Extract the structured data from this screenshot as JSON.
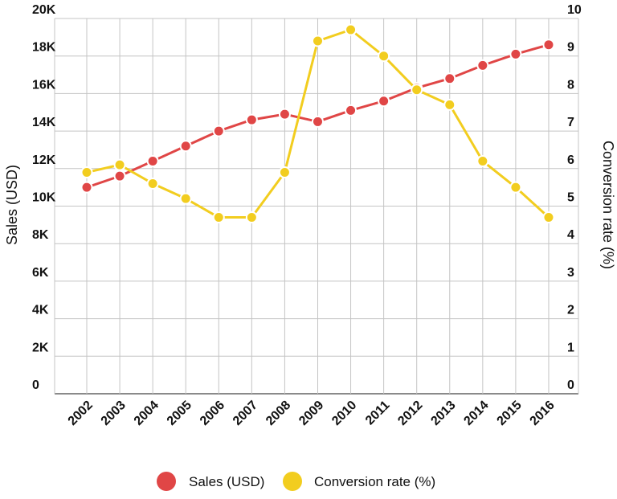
{
  "chart_data": {
    "type": "line",
    "title": "",
    "xlabel": "",
    "ylabel": "Sales (USD)",
    "y2label": "Conversion rate (%)",
    "categories": [
      "2002",
      "2003",
      "2004",
      "2005",
      "2006",
      "2007",
      "2008",
      "2009",
      "2010",
      "2011",
      "2012",
      "2013",
      "2014",
      "2015",
      "2016"
    ],
    "ylim": [
      0,
      20000
    ],
    "y_ticks": [
      0,
      2000,
      4000,
      6000,
      8000,
      10000,
      12000,
      14000,
      16000,
      18000,
      20000
    ],
    "y_tick_labels": [
      "0",
      "2K",
      "4K",
      "6K",
      "8K",
      "10K",
      "12K",
      "14K",
      "16K",
      "18K",
      "20K"
    ],
    "y2lim": [
      0,
      10
    ],
    "y2_ticks": [
      0,
      1,
      2,
      3,
      4,
      5,
      6,
      7,
      8,
      9,
      10
    ],
    "y2_tick_labels": [
      "0",
      "1",
      "2",
      "3",
      "4",
      "5",
      "6",
      "7",
      "8",
      "9",
      "10"
    ],
    "grid": true,
    "legend_position": "bottom",
    "series": [
      {
        "name": "Sales (USD)",
        "axis": "left",
        "color": "#e04646",
        "values": [
          11000,
          11600,
          12400,
          13200,
          14000,
          14600,
          14900,
          14500,
          15100,
          15600,
          16300,
          16800,
          17500,
          18100,
          18600
        ]
      },
      {
        "name": "Conversion rate (%)",
        "axis": "right",
        "color": "#f2cd1f",
        "values": [
          5.9,
          6.1,
          5.6,
          5.2,
          4.7,
          4.7,
          5.9,
          9.4,
          9.7,
          9.0,
          8.1,
          7.7,
          6.2,
          5.5,
          4.7
        ]
      }
    ]
  }
}
